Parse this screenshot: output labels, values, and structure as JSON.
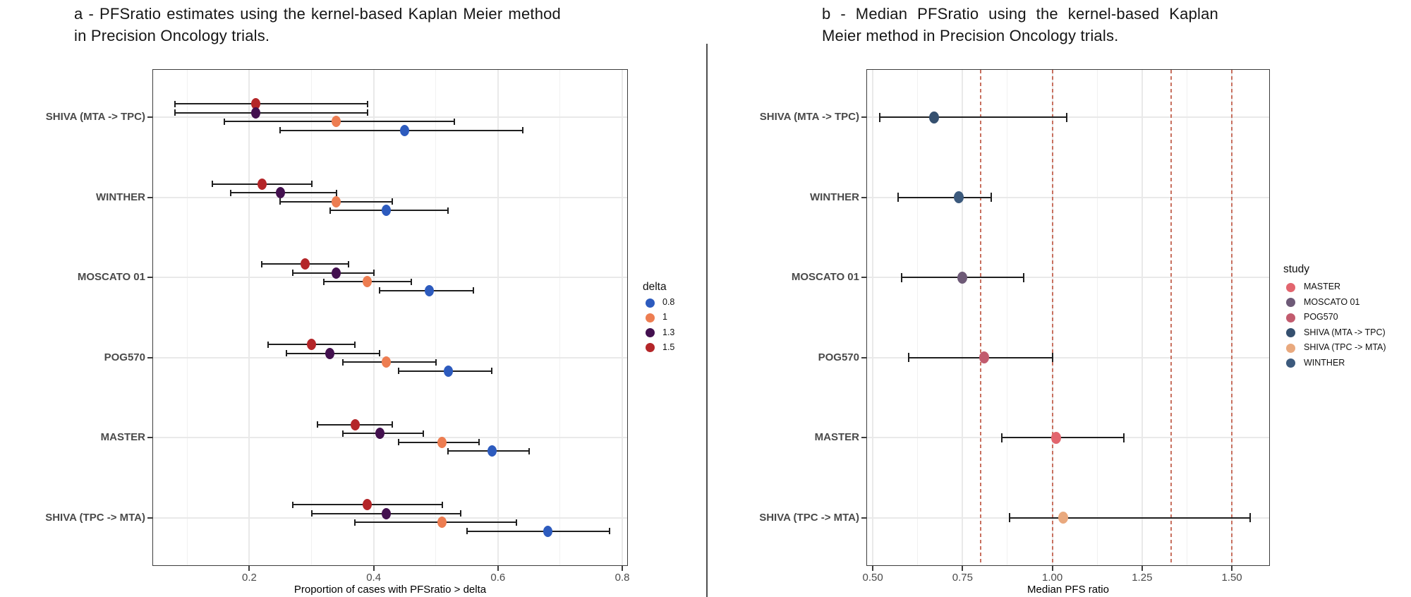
{
  "chart_data": [
    {
      "type": "scatter",
      "panel_label": "a",
      "title": "a - PFSratio estimates using the kernel-based Kaplan Meier method in Precision Oncology trials.",
      "xlabel": "Proportion of cases with PFSratio > delta",
      "xlim": [
        0.04,
        0.81
      ],
      "xticks": {
        "values": [
          0.2,
          0.4,
          0.6,
          0.8
        ],
        "labels": [
          "0.2",
          "0.4",
          "0.6",
          "0.8"
        ]
      },
      "xminor": [
        0.1,
        0.3,
        0.5,
        0.7
      ],
      "grid": "on",
      "categories": [
        "SHIVA (MTA -> TPC)",
        "WINTHER",
        "MOSCATO 01",
        "POG570",
        "MASTER",
        "SHIVA (TPC -> MTA)"
      ],
      "legend": {
        "title": "delta",
        "position": "right",
        "items": [
          {
            "label": "0.8",
            "color": "#2d5bbe"
          },
          {
            "label": "1",
            "color": "#ed7d51"
          },
          {
            "label": "1.3",
            "color": "#43104f"
          },
          {
            "label": "1.5",
            "color": "#b42629"
          }
        ]
      },
      "series": [
        {
          "name": "1.5",
          "color": "#b42629",
          "values": [
            {
              "est": 0.21,
              "lo": 0.08,
              "hi": 0.39
            },
            {
              "est": 0.22,
              "lo": 0.14,
              "hi": 0.3
            },
            {
              "est": 0.29,
              "lo": 0.22,
              "hi": 0.36
            },
            {
              "est": 0.3,
              "lo": 0.23,
              "hi": 0.37
            },
            {
              "est": 0.37,
              "lo": 0.31,
              "hi": 0.43
            },
            {
              "est": 0.39,
              "lo": 0.27,
              "hi": 0.51
            }
          ]
        },
        {
          "name": "1.3",
          "color": "#43104f",
          "values": [
            {
              "est": 0.21,
              "lo": 0.08,
              "hi": 0.39
            },
            {
              "est": 0.25,
              "lo": 0.17,
              "hi": 0.34
            },
            {
              "est": 0.34,
              "lo": 0.27,
              "hi": 0.4
            },
            {
              "est": 0.33,
              "lo": 0.26,
              "hi": 0.41
            },
            {
              "est": 0.41,
              "lo": 0.35,
              "hi": 0.48
            },
            {
              "est": 0.42,
              "lo": 0.3,
              "hi": 0.54
            }
          ]
        },
        {
          "name": "1",
          "color": "#ed7d51",
          "values": [
            {
              "est": 0.34,
              "lo": 0.16,
              "hi": 0.53
            },
            {
              "est": 0.34,
              "lo": 0.25,
              "hi": 0.43
            },
            {
              "est": 0.39,
              "lo": 0.32,
              "hi": 0.46
            },
            {
              "est": 0.42,
              "lo": 0.35,
              "hi": 0.5
            },
            {
              "est": 0.51,
              "lo": 0.44,
              "hi": 0.57
            },
            {
              "est": 0.51,
              "lo": 0.37,
              "hi": 0.63
            }
          ]
        },
        {
          "name": "0.8",
          "color": "#2d5bbe",
          "values": [
            {
              "est": 0.45,
              "lo": 0.25,
              "hi": 0.64
            },
            {
              "est": 0.42,
              "lo": 0.33,
              "hi": 0.52
            },
            {
              "est": 0.49,
              "lo": 0.41,
              "hi": 0.56
            },
            {
              "est": 0.52,
              "lo": 0.44,
              "hi": 0.59
            },
            {
              "est": 0.59,
              "lo": 0.52,
              "hi": 0.65
            },
            {
              "est": 0.68,
              "lo": 0.55,
              "hi": 0.78
            }
          ]
        }
      ]
    },
    {
      "type": "scatter",
      "panel_label": "b",
      "title": "b - Median PFSratio using the kernel-based Kaplan Meier method in Precision Oncology trials.",
      "xlabel": "Median PFS ratio",
      "xlim": [
        0.48,
        1.61
      ],
      "xticks": {
        "values": [
          0.5,
          0.75,
          1.0,
          1.25,
          1.5
        ],
        "labels": [
          "0.50",
          "0.75",
          "1.00",
          "1.25",
          "1.50"
        ]
      },
      "xminor": [
        0.625,
        0.875,
        1.125,
        1.375
      ],
      "grid": "on",
      "reference_lines": {
        "values": [
          0.8,
          1.0,
          1.33,
          1.5
        ],
        "style": "dashed",
        "color": "#c8705f"
      },
      "categories": [
        "SHIVA (MTA -> TPC)",
        "WINTHER",
        "MOSCATO 01",
        "POG570",
        "MASTER",
        "SHIVA (TPC -> MTA)"
      ],
      "legend": {
        "title": "study",
        "position": "right",
        "items": [
          {
            "label": "MASTER",
            "color": "#e2656e"
          },
          {
            "label": "MOSCATO 01",
            "color": "#6e5a77"
          },
          {
            "label": "POG570",
            "color": "#c25b6e"
          },
          {
            "label": "SHIVA (MTA -> TPC)",
            "color": "#35506f"
          },
          {
            "label": "SHIVA (TPC -> MTA)",
            "color": "#e9a97e"
          },
          {
            "label": "WINTHER",
            "color": "#3c5a7d"
          }
        ]
      },
      "rows": [
        {
          "study": "SHIVA (MTA -> TPC)",
          "est": 0.67,
          "lo": 0.52,
          "hi": 1.04,
          "color": "#35506f"
        },
        {
          "study": "WINTHER",
          "est": 0.74,
          "lo": 0.57,
          "hi": 0.83,
          "color": "#3c5a7d"
        },
        {
          "study": "MOSCATO 01",
          "est": 0.75,
          "lo": 0.58,
          "hi": 0.92,
          "color": "#6e5a77"
        },
        {
          "study": "POG570",
          "est": 0.81,
          "lo": 0.6,
          "hi": 1.0,
          "color": "#c25b6e"
        },
        {
          "study": "MASTER",
          "est": 1.01,
          "lo": 0.86,
          "hi": 1.2,
          "color": "#e2656e"
        },
        {
          "study": "SHIVA (TPC -> MTA)",
          "est": 1.03,
          "lo": 0.88,
          "hi": 1.55,
          "color": "#e9a97e"
        }
      ]
    }
  ]
}
